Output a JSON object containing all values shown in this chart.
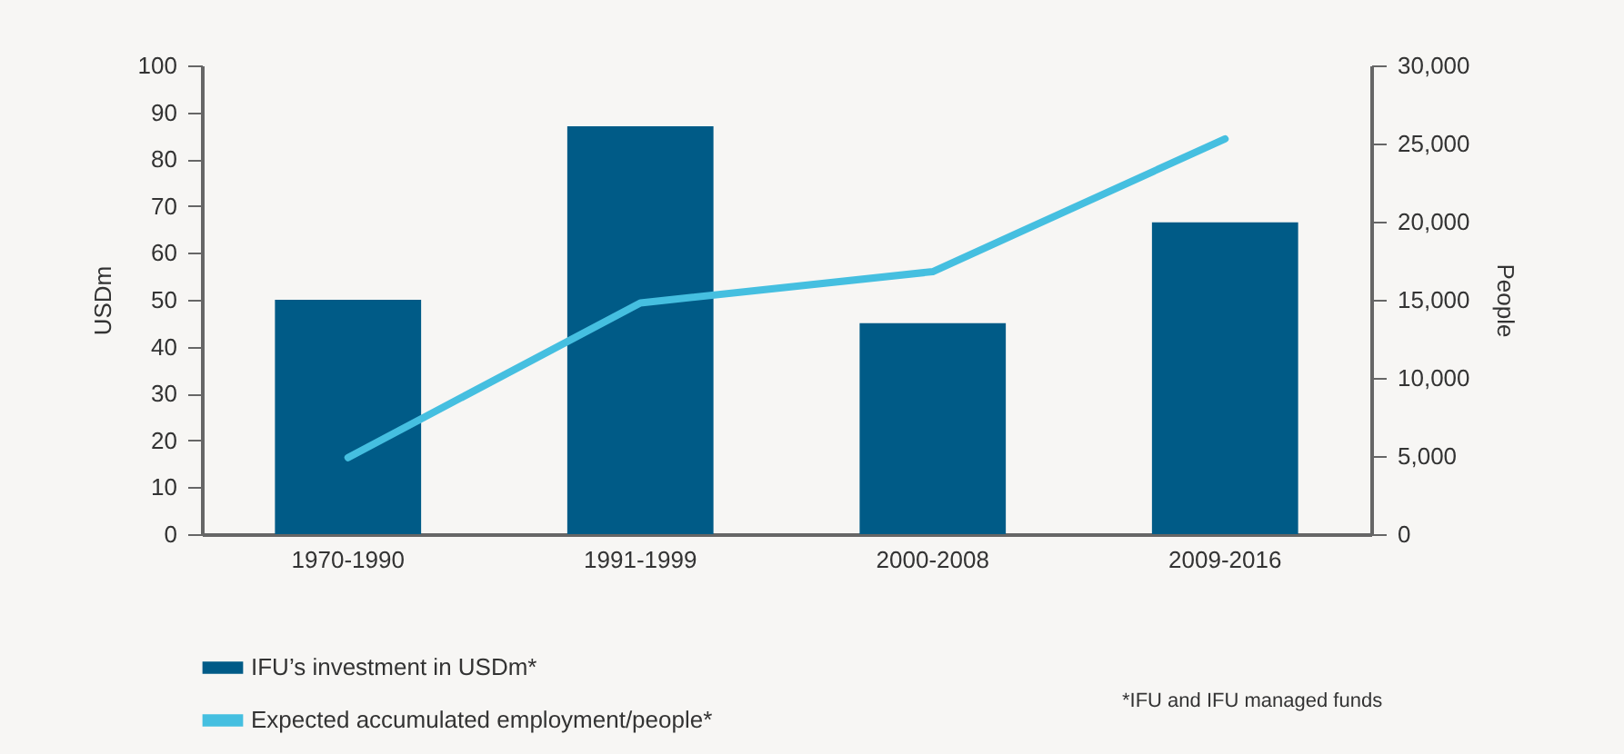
{
  "chart_data": {
    "type": "bar",
    "categories": [
      "1970-1990",
      "1991-1999",
      "2000-2008",
      "2009-2016"
    ],
    "series": [
      {
        "name": "IFU’s investment in USDm*",
        "color": "#005b87",
        "values": [
          50,
          87,
          45,
          66.5
        ]
      },
      {
        "name": "Expected accumulated  employment/people*",
        "type": "line",
        "axis": "y2",
        "color": "#45bfe0",
        "values": [
          4900,
          14800,
          16800,
          25300
        ]
      }
    ],
    "ylabel": "USDm",
    "y2label": "People",
    "ylim": [
      0,
      100
    ],
    "yticks": [
      0,
      10,
      20,
      30,
      40,
      50,
      60,
      70,
      80,
      90,
      100
    ],
    "y2lim": [
      0,
      30000
    ],
    "y2ticks": [
      0,
      {
        "value": 5000,
        "label": "5,000"
      },
      {
        "value": 10000,
        "label": "10,000"
      },
      {
        "value": 15000,
        "label": "15,000"
      },
      {
        "value": 20000,
        "label": "20,000"
      },
      {
        "value": 25000,
        "label": "25,000"
      },
      {
        "value": 30000,
        "label": "30,000"
      }
    ],
    "annotations": [
      "*IFU and IFU managed funds"
    ],
    "legend": "bottom left",
    "grid": false,
    "marker": "none",
    "line_style": "solid"
  }
}
